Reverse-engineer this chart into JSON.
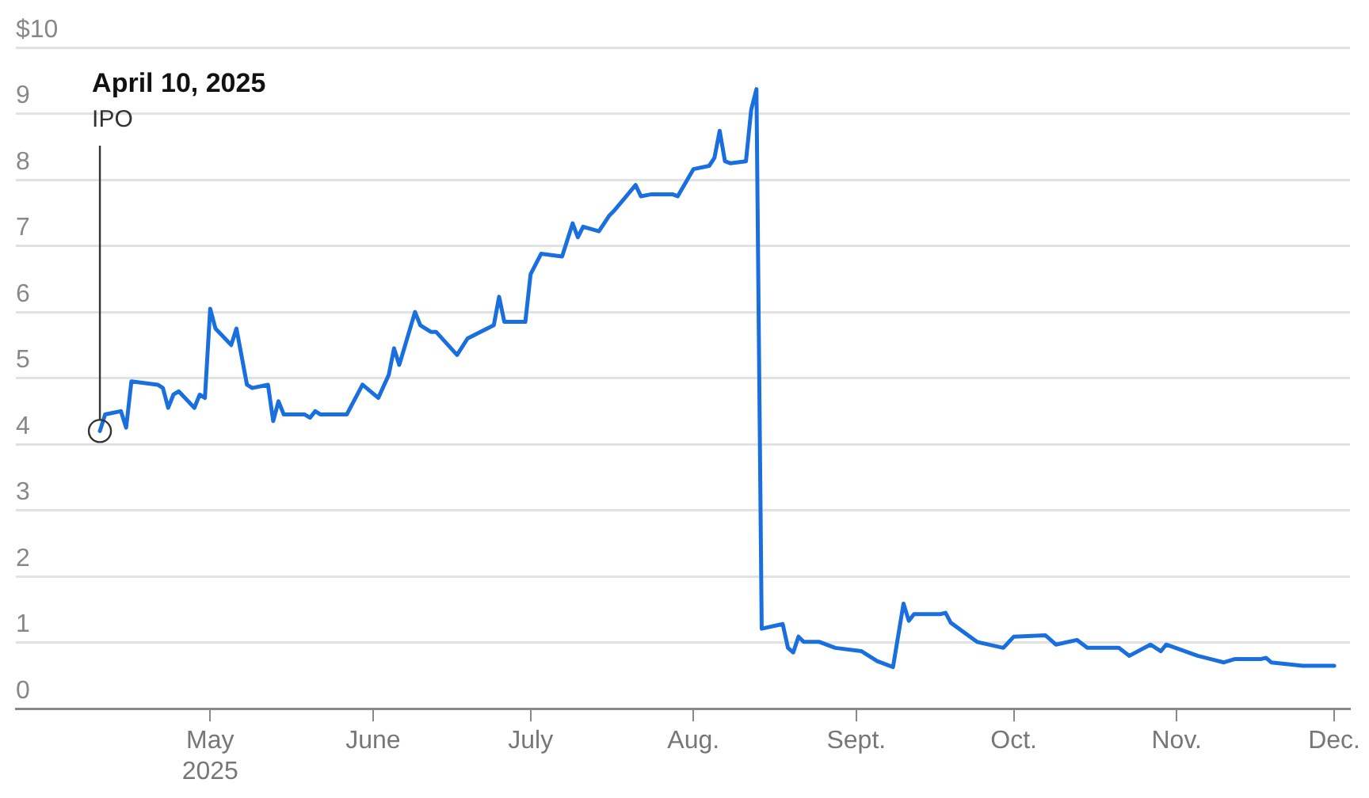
{
  "chart_data": {
    "type": "line",
    "x": [
      "2025-04-10",
      "2025-04-11",
      "2025-04-14",
      "2025-04-15",
      "2025-04-16",
      "2025-04-21",
      "2025-04-22",
      "2025-04-23",
      "2025-04-24",
      "2025-04-25",
      "2025-04-28",
      "2025-04-29",
      "2025-04-30",
      "2025-05-01",
      "2025-05-02",
      "2025-05-05",
      "2025-05-06",
      "2025-05-08",
      "2025-05-09",
      "2025-05-12",
      "2025-05-13",
      "2025-05-14",
      "2025-05-15",
      "2025-05-19",
      "2025-05-20",
      "2025-05-21",
      "2025-05-22",
      "2025-05-27",
      "2025-05-30",
      "2025-06-02",
      "2025-06-04",
      "2025-06-05",
      "2025-06-06",
      "2025-06-09",
      "2025-06-10",
      "2025-06-12",
      "2025-06-13",
      "2025-06-17",
      "2025-06-19",
      "2025-06-24",
      "2025-06-25",
      "2025-06-26",
      "2025-06-30",
      "2025-07-01",
      "2025-07-03",
      "2025-07-07",
      "2025-07-09",
      "2025-07-10",
      "2025-07-11",
      "2025-07-14",
      "2025-07-16",
      "2025-07-17",
      "2025-07-21",
      "2025-07-22",
      "2025-07-24",
      "2025-07-28",
      "2025-07-29",
      "2025-08-01",
      "2025-08-04",
      "2025-08-05",
      "2025-08-06",
      "2025-08-07",
      "2025-08-08",
      "2025-08-11",
      "2025-08-12",
      "2025-08-13",
      "2025-08-14",
      "2025-08-18",
      "2025-08-19",
      "2025-08-20",
      "2025-08-21",
      "2025-08-22",
      "2025-08-25",
      "2025-08-28",
      "2025-09-02",
      "2025-09-05",
      "2025-09-08",
      "2025-09-10",
      "2025-09-11",
      "2025-09-12",
      "2025-09-17",
      "2025-09-18",
      "2025-09-19",
      "2025-09-24",
      "2025-09-29",
      "2025-10-01",
      "2025-10-07",
      "2025-10-09",
      "2025-10-13",
      "2025-10-15",
      "2025-10-21",
      "2025-10-23",
      "2025-10-27",
      "2025-10-29",
      "2025-10-30",
      "2025-11-05",
      "2025-11-10",
      "2025-11-12",
      "2025-11-17",
      "2025-11-18",
      "2025-11-19",
      "2025-11-25",
      "2025-12-01"
    ],
    "series": [
      {
        "color": "#1a6fdf",
        "values": [
          4.2,
          4.45,
          4.5,
          4.25,
          4.95,
          4.9,
          4.85,
          4.55,
          4.75,
          4.8,
          4.55,
          4.75,
          4.7,
          6.05,
          5.75,
          5.5,
          5.75,
          4.9,
          4.85,
          4.9,
          4.35,
          4.65,
          4.45,
          4.45,
          4.4,
          4.5,
          4.45,
          4.45,
          4.9,
          4.7,
          5.05,
          5.45,
          5.2,
          6.0,
          5.8,
          5.7,
          5.7,
          5.35,
          5.6,
          5.8,
          6.23,
          5.85,
          5.85,
          6.57,
          6.88,
          6.84,
          7.34,
          7.13,
          7.29,
          7.22,
          7.46,
          7.54,
          7.92,
          7.75,
          7.78,
          7.78,
          7.75,
          8.16,
          8.21,
          8.33,
          8.74,
          8.28,
          8.25,
          8.28,
          9.06,
          9.37,
          1.21,
          1.28,
          0.92,
          0.85,
          1.09,
          1.01,
          1.01,
          0.92,
          0.87,
          0.72,
          0.63,
          1.59,
          1.33,
          1.43,
          1.43,
          1.45,
          1.3,
          1.01,
          0.92,
          1.09,
          1.11,
          0.97,
          1.04,
          0.92,
          0.92,
          0.8,
          0.97,
          0.87,
          0.97,
          0.8,
          0.7,
          0.75,
          0.75,
          0.77,
          0.7,
          0.65,
          0.65
        ]
      }
    ],
    "xlim": [
      "2025-03-25",
      "2025-12-04"
    ],
    "xticks": [
      {
        "value": "2025-05-01",
        "label": "May 2025"
      },
      {
        "value": "2025-06-01",
        "label": "June"
      },
      {
        "value": "2025-07-01",
        "label": "July"
      },
      {
        "value": "2025-08-01",
        "label": "Aug."
      },
      {
        "value": "2025-09-01",
        "label": "Sept."
      },
      {
        "value": "2025-10-01",
        "label": "Oct."
      },
      {
        "value": "2025-11-01",
        "label": "Nov."
      },
      {
        "value": "2025-12-01",
        "label": "Dec."
      }
    ],
    "ylim": [
      0,
      10
    ],
    "yticks": [
      0,
      1,
      2,
      3,
      4,
      5,
      6,
      7,
      8,
      9,
      {
        "value": 10,
        "label": "$10"
      }
    ],
    "grid": "y",
    "legend": false,
    "marker": "none",
    "line_style": "solid",
    "annotations": [
      "April 10, 2025",
      {
        "text": "IPO",
        "x": "2025-04-10",
        "y": 4.2
      }
    ]
  }
}
